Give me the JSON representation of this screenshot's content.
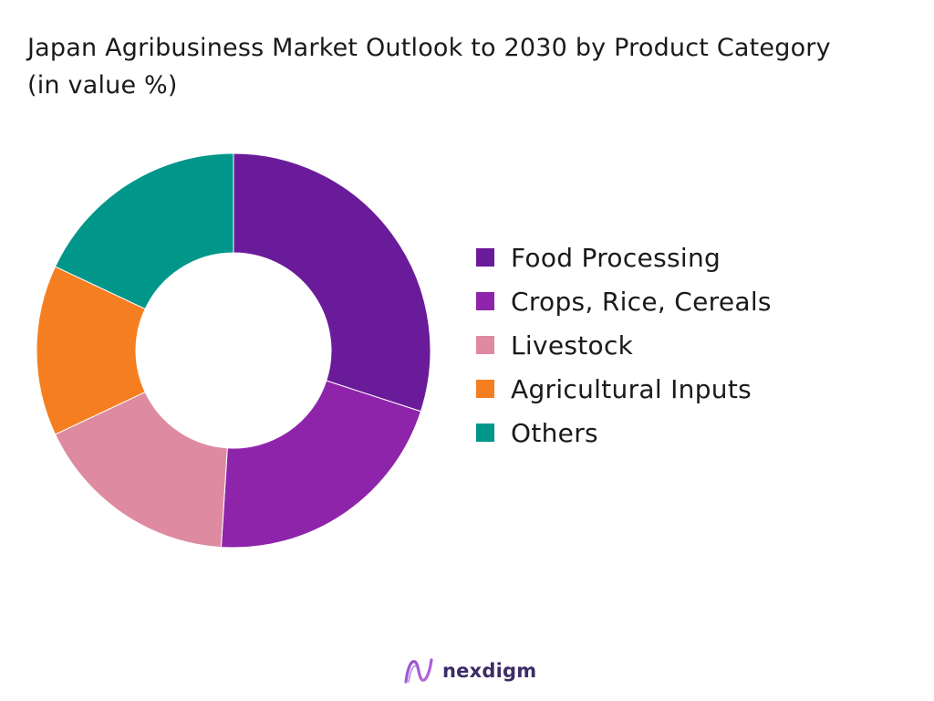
{
  "chart_data": {
    "type": "pie",
    "title": "Japan Agribusiness Market Outlook to 2030 by Product Category (in value %)",
    "series": [
      {
        "name": "Food Processing",
        "value": 30,
        "color": "#6a1b9a"
      },
      {
        "name": "Crops, Rice, Cereals",
        "value": 21,
        "color": "#8e24aa"
      },
      {
        "name": "Livestock",
        "value": 17,
        "color": "#de8aa0"
      },
      {
        "name": "Agricultural Inputs",
        "value": 14,
        "color": "#f57f20"
      },
      {
        "name": "Others",
        "value": 18,
        "color": "#00968a"
      }
    ],
    "donut": true,
    "legend_position": "right"
  },
  "brand": {
    "name": "nexdigm",
    "icon": "nexdigm-logo-icon",
    "color": "#3b2d66"
  }
}
